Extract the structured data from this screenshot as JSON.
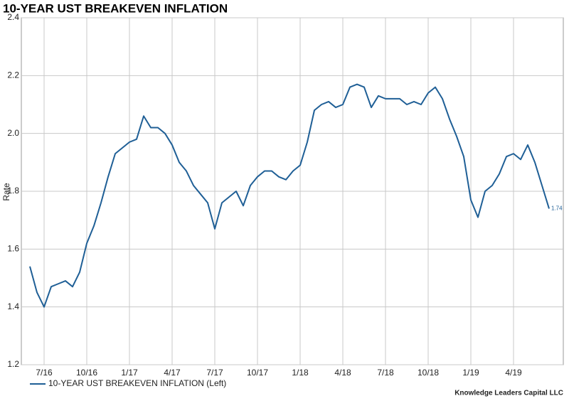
{
  "chart_data": {
    "type": "line",
    "title": "10-YEAR UST BREAKEVEN INFLATION",
    "y_label": "Rate",
    "credit": "Knowledge Leaders Capital LLC",
    "categories": [
      null,
      null,
      "7/16",
      null,
      null,
      null,
      null,
      null,
      "10/16",
      null,
      null,
      null,
      null,
      null,
      "1/17",
      null,
      null,
      null,
      null,
      null,
      "4/17",
      null,
      null,
      null,
      null,
      null,
      "7/17",
      null,
      null,
      null,
      null,
      null,
      "10/17",
      null,
      null,
      null,
      null,
      null,
      "1/18",
      null,
      null,
      null,
      null,
      null,
      "4/18",
      null,
      null,
      null,
      null,
      null,
      "7/18",
      null,
      null,
      null,
      null,
      null,
      "10/18",
      null,
      null,
      null,
      null,
      null,
      "1/19",
      null,
      null,
      null,
      null,
      null,
      "4/19",
      null,
      null,
      null,
      null,
      null
    ],
    "series": [
      {
        "name": "10-YEAR UST BREAKEVEN INFLATION (Left)",
        "color": "#1f5f96",
        "values": [
          1.54,
          1.45,
          1.4,
          1.47,
          1.48,
          1.49,
          1.47,
          1.52,
          1.62,
          1.68,
          1.76,
          1.85,
          1.93,
          1.95,
          1.97,
          1.98,
          2.06,
          2.02,
          2.02,
          2.0,
          1.96,
          1.9,
          1.87,
          1.82,
          1.79,
          1.76,
          1.67,
          1.76,
          1.78,
          1.8,
          1.75,
          1.82,
          1.85,
          1.87,
          1.87,
          1.85,
          1.84,
          1.87,
          1.89,
          1.97,
          2.08,
          2.1,
          2.11,
          2.09,
          2.1,
          2.16,
          2.17,
          2.16,
          2.09,
          2.13,
          2.12,
          2.12,
          2.12,
          2.1,
          2.11,
          2.1,
          2.14,
          2.16,
          2.12,
          2.05,
          1.99,
          1.92,
          1.77,
          1.71,
          1.8,
          1.82,
          1.86,
          1.92,
          1.93,
          1.91,
          1.96,
          1.9,
          1.82,
          1.74
        ]
      }
    ],
    "ylim": [
      1.2,
      2.4
    ],
    "yticks": [
      1.2,
      1.4,
      1.6,
      {
        "value": 2.0,
        "label": "2.0"
      },
      1.8,
      2.2,
      2.4
    ],
    "grid": true,
    "legend": "bottom-left"
  }
}
